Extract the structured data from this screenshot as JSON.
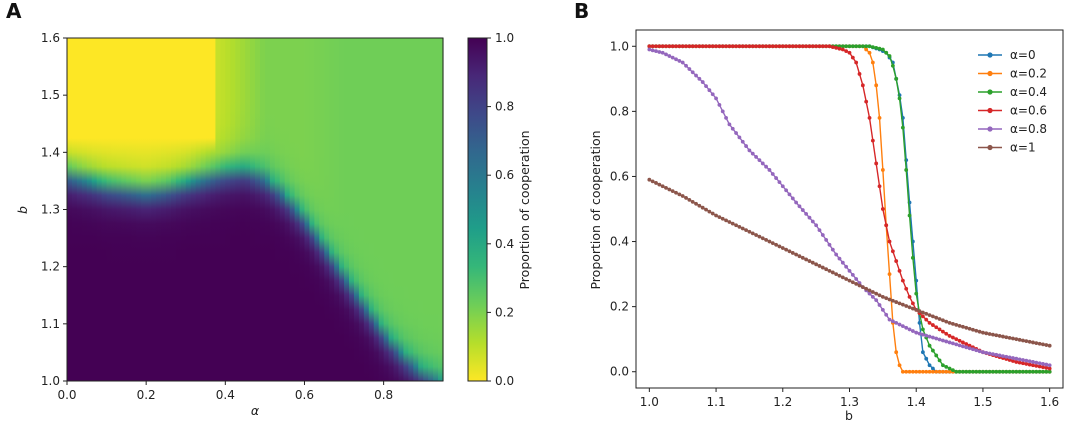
{
  "panels": {
    "a_label": "A",
    "b_label": "B"
  },
  "chart_data": [
    {
      "type": "heatmap",
      "panel": "A",
      "xlabel": "α",
      "ylabel": "b",
      "xlim": [
        0.0,
        0.95
      ],
      "ylim": [
        1.0,
        1.6
      ],
      "x_ticks": [
        "0.0",
        "0.2",
        "0.4",
        "0.6",
        "0.8"
      ],
      "y_ticks": [
        "1.0",
        "1.1",
        "1.2",
        "1.3",
        "1.4",
        "1.5",
        "1.6"
      ],
      "colorbar": {
        "label": "Proportion of cooperation",
        "range": [
          0.0,
          1.0
        ],
        "ticks": [
          "0.0",
          "0.2",
          "0.4",
          "0.6",
          "0.8",
          "1.0"
        ],
        "colormap": "viridis",
        "colors": [
          "#fde725",
          "#b5de2b",
          "#6ece58",
          "#35b779",
          "#1f9e89",
          "#26828e",
          "#31688e",
          "#3e4989",
          "#482878",
          "#440154"
        ]
      },
      "transition_boundary": {
        "alpha": [
          0.0,
          0.05,
          0.1,
          0.15,
          0.2,
          0.25,
          0.3,
          0.35,
          0.4,
          0.45,
          0.5,
          0.55,
          0.6,
          0.65,
          0.7,
          0.75,
          0.8,
          0.85,
          0.9,
          0.95
        ],
        "b": [
          1.365,
          1.355,
          1.345,
          1.34,
          1.335,
          1.34,
          1.35,
          1.36,
          1.37,
          1.375,
          1.36,
          1.33,
          1.29,
          1.24,
          1.19,
          1.14,
          1.09,
          1.05,
          1.02,
          1.0
        ]
      },
      "upper_region_values": {
        "alpha": [
          0.0,
          0.1,
          0.2,
          0.3,
          0.4,
          0.5,
          0.6,
          0.7,
          0.8,
          0.9,
          0.95
        ],
        "value_just_above_boundary": [
          0.02,
          0.02,
          0.02,
          0.03,
          0.1,
          0.2,
          0.2,
          0.22,
          0.22,
          0.22,
          0.22
        ]
      }
    },
    {
      "type": "line",
      "panel": "B",
      "xlabel": "b",
      "ylabel": "Proportion of cooperation",
      "xlim": [
        0.98,
        1.62
      ],
      "ylim": [
        -0.05,
        1.05
      ],
      "x_ticks": [
        "1.0",
        "1.1",
        "1.2",
        "1.3",
        "1.4",
        "1.5",
        "1.6"
      ],
      "y_ticks": [
        "0.0",
        "0.2",
        "0.4",
        "0.6",
        "0.8",
        "1.0"
      ],
      "legend_position": "top-right",
      "series": [
        {
          "name": "α=0",
          "color": "#1f77b4",
          "x": [
            1.0,
            1.2,
            1.3,
            1.33,
            1.345,
            1.355,
            1.365,
            1.375,
            1.38,
            1.385,
            1.39,
            1.395,
            1.4,
            1.405,
            1.41,
            1.42,
            1.43,
            1.45,
            1.5,
            1.6
          ],
          "y": [
            1.0,
            1.0,
            1.0,
            1.0,
            0.99,
            0.98,
            0.95,
            0.85,
            0.78,
            0.65,
            0.52,
            0.4,
            0.28,
            0.15,
            0.06,
            0.02,
            0.0,
            0.0,
            0.0,
            0.0
          ]
        },
        {
          "name": "α=0.2",
          "color": "#ff7f0e",
          "x": [
            1.0,
            1.2,
            1.3,
            1.32,
            1.33,
            1.335,
            1.34,
            1.345,
            1.35,
            1.355,
            1.36,
            1.365,
            1.37,
            1.375,
            1.38,
            1.39,
            1.4,
            1.5,
            1.6
          ],
          "y": [
            1.0,
            1.0,
            1.0,
            1.0,
            0.98,
            0.95,
            0.88,
            0.78,
            0.62,
            0.45,
            0.3,
            0.15,
            0.06,
            0.02,
            0.0,
            0.0,
            0.0,
            0.0,
            0.0
          ]
        },
        {
          "name": "α=0.4",
          "color": "#2ca02c",
          "x": [
            1.0,
            1.2,
            1.3,
            1.33,
            1.35,
            1.36,
            1.365,
            1.37,
            1.375,
            1.38,
            1.385,
            1.39,
            1.395,
            1.4,
            1.405,
            1.41,
            1.42,
            1.43,
            1.44,
            1.46,
            1.5,
            1.6
          ],
          "y": [
            1.0,
            1.0,
            1.0,
            1.0,
            0.99,
            0.97,
            0.94,
            0.9,
            0.84,
            0.75,
            0.62,
            0.48,
            0.35,
            0.24,
            0.18,
            0.13,
            0.08,
            0.05,
            0.02,
            0.0,
            0.0,
            0.0
          ]
        },
        {
          "name": "α=0.6",
          "color": "#d62728",
          "x": [
            1.0,
            1.2,
            1.27,
            1.29,
            1.3,
            1.31,
            1.32,
            1.33,
            1.34,
            1.35,
            1.36,
            1.37,
            1.38,
            1.39,
            1.4,
            1.42,
            1.45,
            1.5,
            1.55,
            1.6
          ],
          "y": [
            1.0,
            1.0,
            1.0,
            0.99,
            0.98,
            0.95,
            0.88,
            0.78,
            0.64,
            0.5,
            0.4,
            0.34,
            0.28,
            0.23,
            0.19,
            0.15,
            0.11,
            0.06,
            0.03,
            0.01
          ]
        },
        {
          "name": "α=0.8",
          "color": "#9467bd",
          "x": [
            1.0,
            1.02,
            1.05,
            1.08,
            1.1,
            1.12,
            1.15,
            1.18,
            1.2,
            1.22,
            1.25,
            1.28,
            1.3,
            1.32,
            1.34,
            1.36,
            1.38,
            1.4,
            1.45,
            1.5,
            1.55,
            1.6
          ],
          "y": [
            0.99,
            0.98,
            0.95,
            0.89,
            0.84,
            0.76,
            0.68,
            0.62,
            0.57,
            0.52,
            0.45,
            0.36,
            0.31,
            0.26,
            0.22,
            0.16,
            0.14,
            0.12,
            0.09,
            0.06,
            0.04,
            0.02
          ]
        },
        {
          "name": "α=1",
          "color": "#8c564b",
          "x": [
            1.0,
            1.05,
            1.1,
            1.15,
            1.2,
            1.25,
            1.3,
            1.35,
            1.4,
            1.45,
            1.5,
            1.55,
            1.6
          ],
          "y": [
            0.59,
            0.54,
            0.48,
            0.43,
            0.38,
            0.33,
            0.28,
            0.23,
            0.19,
            0.15,
            0.12,
            0.1,
            0.08
          ]
        }
      ]
    }
  ]
}
